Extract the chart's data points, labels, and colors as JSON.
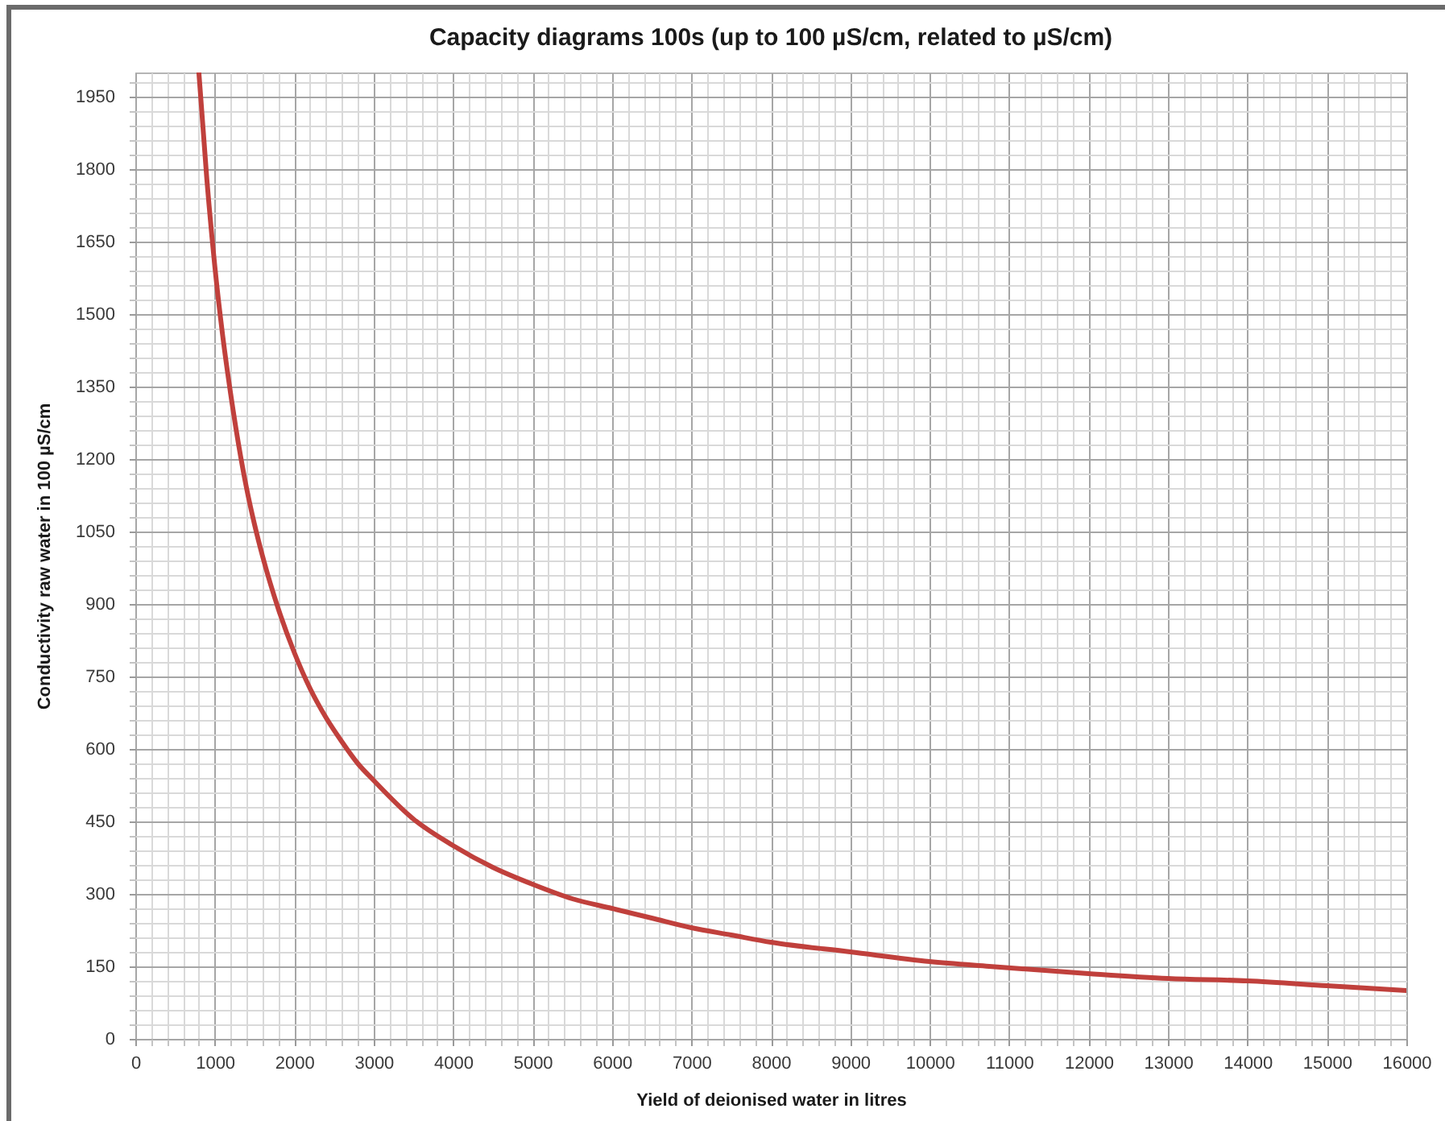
{
  "chart_data": {
    "type": "line",
    "title": "Capacity diagrams 100s (up to 100 µS/cm, related to µS/cm)",
    "xlabel": "Yield of deionised water in litres",
    "ylabel": "Conductivity raw water in 100 µS/cm",
    "x": [
      800,
      900,
      1000,
      1100,
      1200,
      1300,
      1400,
      1500,
      1600,
      1800,
      2000,
      2200,
      2400,
      2600,
      2800,
      3000,
      3500,
      4000,
      4500,
      5000,
      5500,
      6000,
      6500,
      7000,
      7500,
      8000,
      9000,
      10000,
      10750,
      12000,
      13000,
      14000,
      15000,
      16000
    ],
    "series": [
      {
        "color": "#c0403c",
        "values": [
          2000,
          1780,
          1600,
          1455,
          1335,
          1230,
          1140,
          1065,
          1000,
          890,
          800,
          725,
          665,
          615,
          570,
          535,
          455,
          400,
          355,
          320,
          290,
          270,
          250,
          230,
          215,
          200,
          180,
          160,
          150,
          135,
          125,
          120,
          110,
          100
        ]
      }
    ],
    "xlim": [
      0,
      16000
    ],
    "ylim": [
      0,
      2000
    ],
    "xticks": [
      0,
      {
        "value": 200,
        "label": null
      },
      {
        "value": 400,
        "label": null
      },
      {
        "value": 600,
        "label": null
      },
      {
        "value": 800,
        "label": null
      },
      1000,
      {
        "value": 1200,
        "label": null
      },
      {
        "value": 1400,
        "label": null
      },
      {
        "value": 1600,
        "label": null
      },
      {
        "value": 1800,
        "label": null
      },
      2000,
      {
        "value": 2200,
        "label": null
      },
      {
        "value": 2400,
        "label": null
      },
      {
        "value": 2600,
        "label": null
      },
      {
        "value": 2800,
        "label": null
      },
      3000,
      {
        "value": 3200,
        "label": null
      },
      {
        "value": 3400,
        "label": null
      },
      {
        "value": 3600,
        "label": null
      },
      {
        "value": 3800,
        "label": null
      },
      4000,
      {
        "value": 4200,
        "label": null
      },
      {
        "value": 4400,
        "label": null
      },
      {
        "value": 4600,
        "label": null
      },
      {
        "value": 4800,
        "label": null
      },
      5000,
      {
        "value": 5200,
        "label": null
      },
      {
        "value": 5400,
        "label": null
      },
      {
        "value": 5600,
        "label": null
      },
      {
        "value": 5800,
        "label": null
      },
      6000,
      {
        "value": 6200,
        "label": null
      },
      {
        "value": 6400,
        "label": null
      },
      {
        "value": 6600,
        "label": null
      },
      {
        "value": 6800,
        "label": null
      },
      7000,
      {
        "value": 7200,
        "label": null
      },
      {
        "value": 7400,
        "label": null
      },
      {
        "value": 7600,
        "label": null
      },
      {
        "value": 7800,
        "label": null
      },
      8000,
      {
        "value": 8200,
        "label": null
      },
      {
        "value": 8400,
        "label": null
      },
      {
        "value": 8600,
        "label": null
      },
      {
        "value": 8800,
        "label": null
      },
      9000,
      {
        "value": 9200,
        "label": null
      },
      {
        "value": 9400,
        "label": null
      },
      {
        "value": 9600,
        "label": null
      },
      {
        "value": 9800,
        "label": null
      },
      10000,
      {
        "value": 10200,
        "label": null
      },
      {
        "value": 10400,
        "label": null
      },
      {
        "value": 10600,
        "label": null
      },
      {
        "value": 10800,
        "label": null
      },
      11000,
      {
        "value": 11200,
        "label": null
      },
      {
        "value": 11400,
        "label": null
      },
      {
        "value": 11600,
        "label": null
      },
      {
        "value": 11800,
        "label": null
      },
      12000,
      {
        "value": 12200,
        "label": null
      },
      {
        "value": 12400,
        "label": null
      },
      {
        "value": 12600,
        "label": null
      },
      {
        "value": 12800,
        "label": null
      },
      13000,
      {
        "value": 13200,
        "label": null
      },
      {
        "value": 13400,
        "label": null
      },
      {
        "value": 13600,
        "label": null
      },
      {
        "value": 13800,
        "label": null
      },
      14000,
      {
        "value": 14200,
        "label": null
      },
      {
        "value": 14400,
        "label": null
      },
      {
        "value": 14600,
        "label": null
      },
      {
        "value": 14800,
        "label": null
      },
      15000,
      {
        "value": 15200,
        "label": null
      },
      {
        "value": 15400,
        "label": null
      },
      {
        "value": 15600,
        "label": null
      },
      {
        "value": 15800,
        "label": null
      },
      16000
    ],
    "yticks": [
      0,
      {
        "value": 30,
        "label": null
      },
      {
        "value": 60,
        "label": null
      },
      {
        "value": 90,
        "label": null
      },
      {
        "value": 120,
        "label": null
      },
      150,
      {
        "value": 180,
        "label": null
      },
      {
        "value": 210,
        "label": null
      },
      {
        "value": 240,
        "label": null
      },
      {
        "value": 270,
        "label": null
      },
      300,
      {
        "value": 330,
        "label": null
      },
      {
        "value": 360,
        "label": null
      },
      {
        "value": 390,
        "label": null
      },
      {
        "value": 420,
        "label": null
      },
      450,
      {
        "value": 480,
        "label": null
      },
      {
        "value": 510,
        "label": null
      },
      {
        "value": 540,
        "label": null
      },
      {
        "value": 570,
        "label": null
      },
      600,
      {
        "value": 630,
        "label": null
      },
      {
        "value": 660,
        "label": null
      },
      {
        "value": 690,
        "label": null
      },
      {
        "value": 720,
        "label": null
      },
      750,
      {
        "value": 780,
        "label": null
      },
      {
        "value": 810,
        "label": null
      },
      {
        "value": 840,
        "label": null
      },
      {
        "value": 870,
        "label": null
      },
      900,
      {
        "value": 930,
        "label": null
      },
      {
        "value": 960,
        "label": null
      },
      {
        "value": 990,
        "label": null
      },
      {
        "value": 1020,
        "label": null
      },
      1050,
      {
        "value": 1080,
        "label": null
      },
      {
        "value": 1110,
        "label": null
      },
      {
        "value": 1140,
        "label": null
      },
      {
        "value": 1170,
        "label": null
      },
      1200,
      {
        "value": 1230,
        "label": null
      },
      {
        "value": 1260,
        "label": null
      },
      {
        "value": 1290,
        "label": null
      },
      {
        "value": 1320,
        "label": null
      },
      1350,
      {
        "value": 1380,
        "label": null
      },
      {
        "value": 1410,
        "label": null
      },
      {
        "value": 1440,
        "label": null
      },
      {
        "value": 1470,
        "label": null
      },
      1500,
      {
        "value": 1530,
        "label": null
      },
      {
        "value": 1560,
        "label": null
      },
      {
        "value": 1590,
        "label": null
      },
      {
        "value": 1620,
        "label": null
      },
      1650,
      {
        "value": 1680,
        "label": null
      },
      {
        "value": 1710,
        "label": null
      },
      {
        "value": 1740,
        "label": null
      },
      {
        "value": 1770,
        "label": null
      },
      1800,
      {
        "value": 1830,
        "label": null
      },
      {
        "value": 1860,
        "label": null
      },
      {
        "value": 1890,
        "label": null
      },
      {
        "value": 1920,
        "label": null
      },
      1950,
      {
        "value": 1980,
        "label": null
      }
    ],
    "grid": true
  }
}
